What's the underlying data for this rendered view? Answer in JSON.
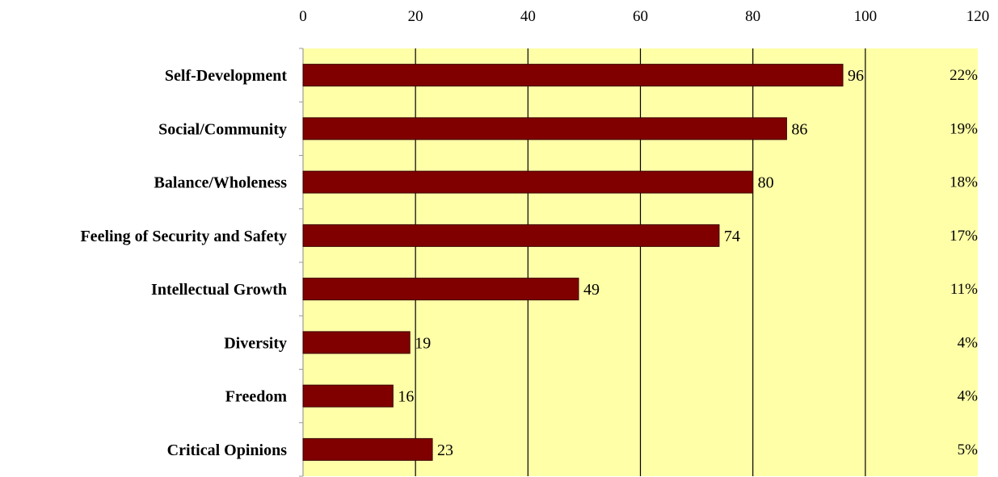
{
  "chart_data": {
    "type": "bar",
    "orientation": "horizontal",
    "title": "",
    "xlabel": "",
    "ylabel": "",
    "xlim": [
      0,
      120
    ],
    "x_ticks": [
      0,
      20,
      40,
      60,
      80,
      100,
      120
    ],
    "x_tick_labels": [
      "0",
      "20",
      "40",
      "60",
      "80",
      "100",
      "120"
    ],
    "x_axis_position": "top",
    "grid": "vertical gridlines",
    "categories": [
      "Self-Development",
      "Social/Community",
      "Balance/Wholeness",
      "Feeling of Security and Safety",
      "Intellectual Growth",
      "Diversity",
      "Freedom",
      "Critical Opinions"
    ],
    "values": [
      96,
      86,
      80,
      74,
      49,
      19,
      16,
      23
    ],
    "value_labels": [
      "96",
      "86",
      "80",
      "74",
      "49",
      "19",
      "16",
      "23"
    ],
    "percent_labels": [
      "22%",
      "19%",
      "18%",
      "17%",
      "11%",
      "4%",
      "4%",
      "5%"
    ],
    "colors": {
      "bar": "#800000",
      "plot_background": "#ffffa8",
      "grid": "#000000"
    }
  }
}
